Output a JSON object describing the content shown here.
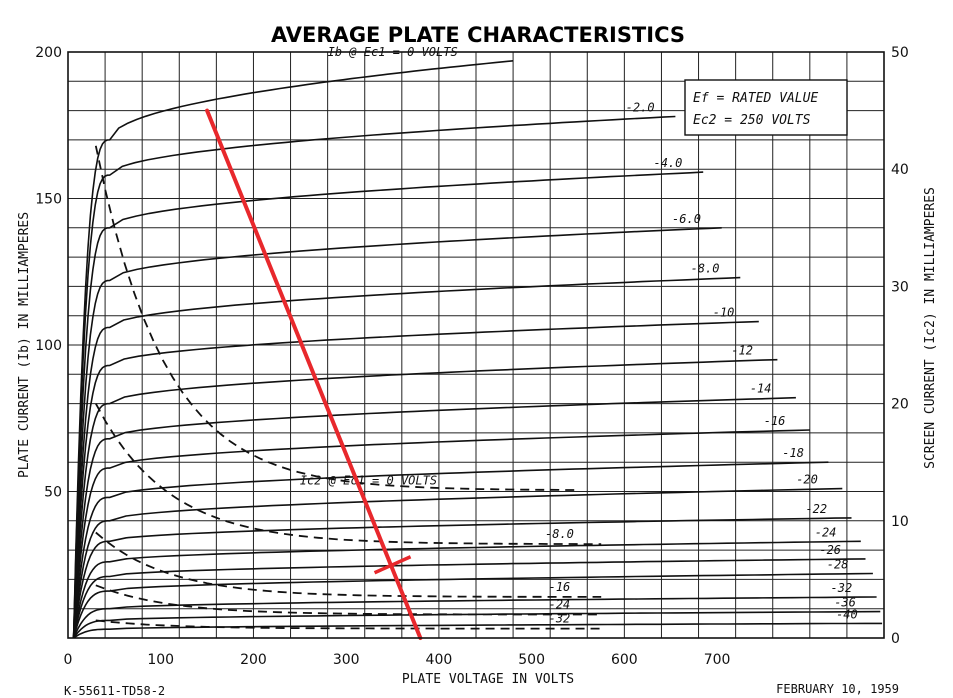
{
  "chart_data": {
    "type": "line",
    "title": "AVERAGE PLATE CHARACTERISTICS",
    "xlabel": "PLATE VOLTAGE IN VOLTS",
    "ylabel": "PLATE CURRENT (Ib) IN MILLIAMPERES",
    "y2label": "SCREEN CURRENT (Ic2) IN MILLIAMPERES",
    "xlim": [
      0,
      700
    ],
    "ylim": [
      0,
      200
    ],
    "y2lim": [
      0,
      50
    ],
    "xticks": [
      0,
      100,
      200,
      300,
      400,
      500,
      600,
      700
    ],
    "yticks": [
      50,
      100,
      150,
      200
    ],
    "y2ticks": [
      0,
      10,
      20,
      30,
      40,
      50
    ],
    "grid": true,
    "conditions": [
      "Ef = RATED VALUE",
      "Ec2 = 250 VOLTS"
    ],
    "plate_curves": [
      {
        "label": "Ib @ Ec1 = 0 VOLTS",
        "knee_v": 45,
        "knee_i": 170,
        "end_v": 480,
        "end_i": 197
      },
      {
        "label": "-2.0",
        "knee_v": 45,
        "knee_i": 158,
        "end_v": 655,
        "end_i": 178
      },
      {
        "label": "-4.0",
        "knee_v": 45,
        "knee_i": 140,
        "end_v": 685,
        "end_i": 159
      },
      {
        "label": "-6.0",
        "knee_v": 45,
        "knee_i": 122,
        "end_v": 705,
        "end_i": 140
      },
      {
        "label": "-8.0",
        "knee_v": 45,
        "knee_i": 106,
        "end_v": 725,
        "end_i": 123
      },
      {
        "label": "-10",
        "knee_v": 45,
        "knee_i": 93,
        "end_v": 745,
        "end_i": 108
      },
      {
        "label": "-12",
        "knee_v": 45,
        "knee_i": 80,
        "end_v": 765,
        "end_i": 95
      },
      {
        "label": "-14",
        "knee_v": 45,
        "knee_i": 68,
        "end_v": 785,
        "end_i": 82
      },
      {
        "label": "-16",
        "knee_v": 45,
        "knee_i": 58,
        "end_v": 800,
        "end_i": 71
      },
      {
        "label": "-18",
        "knee_v": 45,
        "knee_i": 48,
        "end_v": 820,
        "end_i": 60
      },
      {
        "label": "-20",
        "knee_v": 45,
        "knee_i": 40,
        "end_v": 835,
        "end_i": 51
      },
      {
        "label": "-22",
        "knee_v": 45,
        "knee_i": 33,
        "end_v": 845,
        "end_i": 41
      },
      {
        "label": "-24",
        "knee_v": 45,
        "knee_i": 26,
        "end_v": 855,
        "end_i": 33
      },
      {
        "label": "-26",
        "knee_v": 45,
        "knee_i": 21,
        "end_v": 860,
        "end_i": 27
      },
      {
        "label": "-28",
        "knee_v": 45,
        "knee_i": 16,
        "end_v": 868,
        "end_i": 22
      },
      {
        "label": "-32",
        "knee_v": 45,
        "knee_i": 10,
        "end_v": 872,
        "end_i": 14
      },
      {
        "label": "-36",
        "knee_v": 45,
        "knee_i": 6,
        "end_v": 876,
        "end_i": 9
      },
      {
        "label": "-40",
        "knee_v": 45,
        "knee_i": 3,
        "end_v": 878,
        "end_i": 5
      }
    ],
    "screen_curves": [
      {
        "label": "Ic2 @ Ec1 = 0 VOLTS",
        "peak_ic2": 42,
        "end_v": 550,
        "end_ic2": 12.6
      },
      {
        "label": "-8.0",
        "peak_ic2": 20,
        "end_v": 575,
        "end_ic2": 8
      },
      {
        "label": "-16",
        "peak_ic2": 9,
        "end_v": 575,
        "end_ic2": 3.5
      },
      {
        "label": "-24",
        "peak_ic2": 4.5,
        "end_v": 575,
        "end_ic2": 2
      },
      {
        "label": "-32",
        "peak_ic2": 1.5,
        "end_v": 575,
        "end_ic2": 0.8
      }
    ],
    "load_line": {
      "color": "#e8282c",
      "points": [
        [
          150,
          180
        ],
        [
          380,
          0
        ]
      ],
      "operating_point": [
        350,
        25
      ]
    }
  },
  "footer": {
    "left": "K-55611-TD58-2",
    "right": "FEBRUARY 10, 1959"
  }
}
